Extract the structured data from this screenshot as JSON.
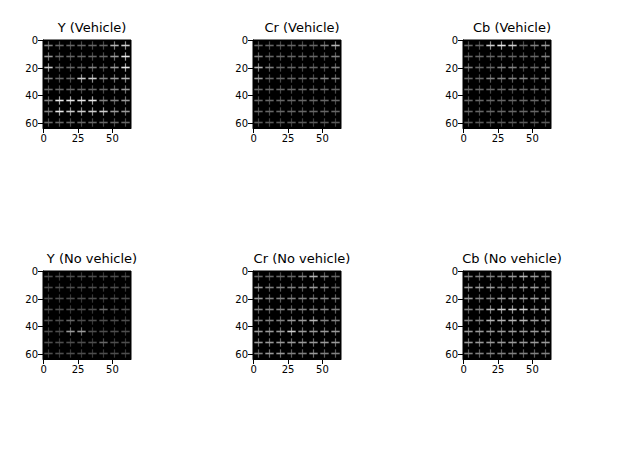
{
  "chart_data": [
    {
      "type": "heatmap",
      "title": "Y (Vehicle)",
      "xlim": [
        -0.5,
        63.5
      ],
      "ylim": [
        63.5,
        -0.5
      ],
      "xticks": [
        0,
        25,
        50
      ],
      "yticks": [
        0,
        20,
        40,
        60
      ],
      "zlim": [
        0,
        1
      ],
      "cells": [
        [
          0.5,
          0.4,
          0.4,
          0.4,
          0.4,
          0.4,
          0.7,
          0.8
        ],
        [
          0.6,
          0.4,
          0.4,
          0.4,
          0.4,
          0.4,
          0.6,
          0.9
        ],
        [
          0.8,
          0.4,
          0.4,
          0.4,
          0.5,
          0.4,
          0.6,
          0.9
        ],
        [
          0.5,
          0.4,
          0.4,
          0.8,
          0.8,
          0.5,
          0.6,
          0.7
        ],
        [
          0.4,
          0.4,
          0.4,
          0.4,
          0.4,
          0.4,
          0.5,
          0.6
        ],
        [
          0.5,
          0.9,
          0.9,
          0.9,
          0.9,
          0.5,
          0.5,
          0.6
        ],
        [
          0.5,
          0.9,
          0.8,
          0.8,
          0.8,
          0.8,
          0.6,
          0.6
        ],
        [
          0.4,
          0.4,
          0.4,
          0.4,
          0.4,
          0.4,
          0.4,
          0.4
        ]
      ]
    },
    {
      "type": "heatmap",
      "title": "Cr (Vehicle)",
      "xlim": [
        -0.5,
        63.5
      ],
      "ylim": [
        63.5,
        -0.5
      ],
      "xticks": [
        0,
        25,
        50
      ],
      "yticks": [
        0,
        20,
        40,
        60
      ],
      "zlim": [
        0,
        1
      ],
      "cells": [
        [
          0.4,
          0.4,
          0.4,
          0.4,
          0.4,
          0.4,
          0.5,
          0.7
        ],
        [
          0.5,
          0.4,
          0.4,
          0.4,
          0.4,
          0.4,
          0.4,
          0.5
        ],
        [
          0.7,
          0.5,
          0.4,
          0.4,
          0.4,
          0.4,
          0.4,
          0.5
        ],
        [
          0.6,
          0.4,
          0.4,
          0.4,
          0.4,
          0.4,
          0.5,
          0.5
        ],
        [
          0.4,
          0.4,
          0.4,
          0.4,
          0.4,
          0.4,
          0.4,
          0.4
        ],
        [
          0.4,
          0.4,
          0.4,
          0.4,
          0.4,
          0.4,
          0.4,
          0.4
        ],
        [
          0.4,
          0.4,
          0.4,
          0.4,
          0.4,
          0.4,
          0.4,
          0.4
        ],
        [
          0.35,
          0.35,
          0.35,
          0.35,
          0.35,
          0.35,
          0.35,
          0.35
        ]
      ]
    },
    {
      "type": "heatmap",
      "title": "Cb (Vehicle)",
      "xlim": [
        -0.5,
        63.5
      ],
      "ylim": [
        63.5,
        -0.5
      ],
      "xticks": [
        0,
        25,
        50
      ],
      "yticks": [
        0,
        20,
        40,
        60
      ],
      "zlim": [
        0,
        1
      ],
      "cells": [
        [
          0.4,
          0.4,
          0.8,
          0.9,
          0.8,
          0.4,
          0.5,
          0.6
        ],
        [
          0.4,
          0.4,
          0.4,
          0.4,
          0.4,
          0.4,
          0.4,
          0.5
        ],
        [
          0.5,
          0.4,
          0.4,
          0.5,
          0.5,
          0.4,
          0.4,
          0.5
        ],
        [
          0.4,
          0.4,
          0.5,
          0.5,
          0.5,
          0.5,
          0.4,
          0.5
        ],
        [
          0.4,
          0.4,
          0.4,
          0.4,
          0.4,
          0.4,
          0.4,
          0.4
        ],
        [
          0.4,
          0.4,
          0.4,
          0.4,
          0.4,
          0.4,
          0.4,
          0.4
        ],
        [
          0.4,
          0.4,
          0.4,
          0.4,
          0.4,
          0.4,
          0.4,
          0.4
        ],
        [
          0.35,
          0.35,
          0.35,
          0.35,
          0.35,
          0.35,
          0.35,
          0.35
        ]
      ]
    },
    {
      "type": "heatmap",
      "title": "Y (No vehicle)",
      "xlim": [
        -0.5,
        63.5
      ],
      "ylim": [
        63.5,
        -0.5
      ],
      "xticks": [
        0,
        25,
        50
      ],
      "yticks": [
        0,
        20,
        40,
        60
      ],
      "zlim": [
        0,
        1
      ],
      "cells": [
        [
          0.3,
          0.3,
          0.3,
          0.3,
          0.3,
          0.3,
          0.3,
          0.3
        ],
        [
          0.3,
          0.3,
          0.3,
          0.3,
          0.3,
          0.3,
          0.3,
          0.3
        ],
        [
          0.3,
          0.3,
          0.3,
          0.3,
          0.3,
          0.3,
          0.3,
          0.3
        ],
        [
          0.3,
          0.3,
          0.3,
          0.3,
          0.3,
          0.4,
          0.3,
          0.3
        ],
        [
          0.3,
          0.3,
          0.4,
          0.3,
          0.3,
          0.3,
          0.3,
          0.3
        ],
        [
          0.3,
          0.3,
          0.6,
          0.6,
          0.3,
          0.3,
          0.3,
          0.3
        ],
        [
          0.3,
          0.3,
          0.3,
          0.3,
          0.3,
          0.4,
          0.3,
          0.3
        ],
        [
          0.3,
          0.3,
          0.3,
          0.3,
          0.3,
          0.3,
          0.3,
          0.3
        ]
      ]
    },
    {
      "type": "heatmap",
      "title": "Cr (No vehicle)",
      "xlim": [
        -0.5,
        63.5
      ],
      "ylim": [
        63.5,
        -0.5
      ],
      "xticks": [
        0,
        25,
        50
      ],
      "yticks": [
        0,
        20,
        40,
        60
      ],
      "zlim": [
        0,
        1
      ],
      "cells": [
        [
          0.4,
          0.4,
          0.4,
          0.4,
          0.5,
          0.7,
          0.5,
          0.4
        ],
        [
          0.6,
          0.5,
          0.5,
          0.5,
          0.5,
          0.6,
          0.5,
          0.4
        ],
        [
          0.6,
          0.5,
          0.5,
          0.5,
          0.5,
          0.5,
          0.5,
          0.5
        ],
        [
          0.5,
          0.5,
          0.5,
          0.5,
          0.5,
          0.5,
          0.5,
          0.5
        ],
        [
          0.5,
          0.5,
          0.5,
          0.6,
          0.6,
          0.7,
          0.5,
          0.5
        ],
        [
          0.6,
          0.6,
          0.6,
          0.8,
          0.6,
          0.6,
          0.6,
          0.6
        ],
        [
          0.6,
          0.6,
          0.6,
          0.6,
          0.6,
          0.6,
          0.6,
          0.6
        ],
        [
          0.5,
          0.6,
          0.6,
          0.5,
          0.5,
          0.6,
          0.5,
          0.5
        ]
      ]
    },
    {
      "type": "heatmap",
      "title": "Cb (No vehicle)",
      "xlim": [
        -0.5,
        63.5
      ],
      "ylim": [
        63.5,
        -0.5
      ],
      "xticks": [
        0,
        25,
        50
      ],
      "yticks": [
        0,
        20,
        40,
        60
      ],
      "zlim": [
        0,
        1
      ],
      "cells": [
        [
          0.5,
          0.5,
          0.5,
          0.5,
          0.6,
          0.7,
          0.6,
          0.5
        ],
        [
          0.6,
          0.6,
          0.6,
          0.5,
          0.5,
          0.6,
          0.6,
          0.5
        ],
        [
          0.6,
          0.5,
          0.5,
          0.6,
          0.6,
          0.6,
          0.6,
          0.6
        ],
        [
          0.5,
          0.5,
          0.7,
          0.8,
          0.8,
          0.8,
          0.6,
          0.7
        ],
        [
          0.5,
          0.5,
          0.7,
          0.7,
          0.7,
          0.7,
          0.6,
          0.6
        ],
        [
          0.6,
          0.6,
          0.6,
          0.6,
          0.6,
          0.6,
          0.6,
          0.6
        ],
        [
          0.6,
          0.6,
          0.6,
          0.6,
          0.6,
          0.6,
          0.6,
          0.6
        ],
        [
          0.5,
          0.5,
          0.5,
          0.5,
          0.5,
          0.5,
          0.5,
          0.5
        ]
      ]
    }
  ]
}
